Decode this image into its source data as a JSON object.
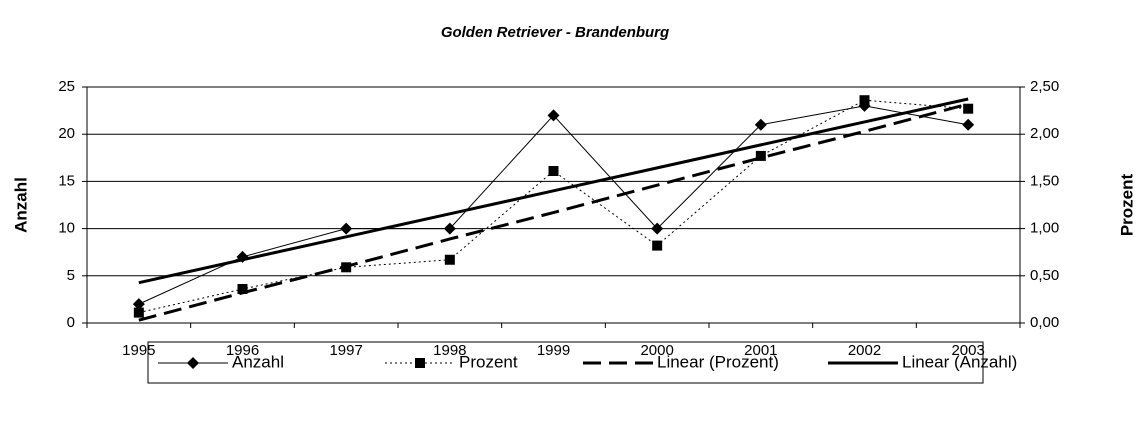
{
  "chart_data": {
    "type": "line",
    "title": "Golden Retriever - Brandenburg",
    "ylabel": "Anzahl",
    "y2label": "Prozent",
    "categories": [
      "1995",
      "1996",
      "1997",
      "1998",
      "1999",
      "2000",
      "2001",
      "2002",
      "2003"
    ],
    "ylim": [
      0,
      25
    ],
    "yticks": [
      0,
      5,
      10,
      15,
      20,
      25
    ],
    "y2lim": [
      0,
      2.5
    ],
    "y2ticks": [
      {
        "value": 0,
        "label": "0,00"
      },
      {
        "value": 0.5,
        "label": "0,50"
      },
      {
        "value": 1,
        "label": "1,00"
      },
      {
        "value": 1.5,
        "label": "1,50"
      },
      {
        "value": 2,
        "label": "2,00"
      },
      {
        "value": 2.5,
        "label": "2,50"
      }
    ],
    "grid": true,
    "legend": "bottom",
    "series": [
      {
        "name": "Anzahl",
        "color": "#000000",
        "dash": "solid",
        "width": 1,
        "marker": "diamond",
        "values": [
          2,
          7,
          10,
          10,
          22,
          10,
          21,
          23,
          21
        ]
      },
      {
        "name": "Prozent",
        "color": "#000000",
        "dash": "dotted",
        "width": 1,
        "marker": "square",
        "axis": "y2",
        "values": [
          0.11,
          0.36,
          0.59,
          0.67,
          1.61,
          0.82,
          1.77,
          2.36,
          2.27
        ]
      },
      {
        "name": "Linear (Prozent)",
        "color": "#000000",
        "dash": "dashed",
        "width": 3,
        "marker": null,
        "axis": "y2",
        "values": [
          0.03,
          0.32,
          0.6,
          0.89,
          1.17,
          1.46,
          1.75,
          2.03,
          2.32
        ]
      },
      {
        "name": "Linear (Anzahl)",
        "color": "#000000",
        "dash": "solid",
        "width": 3,
        "marker": null,
        "values": [
          4.27,
          6.7,
          9.13,
          11.57,
          14,
          16.43,
          18.87,
          21.3,
          23.73
        ]
      }
    ]
  }
}
